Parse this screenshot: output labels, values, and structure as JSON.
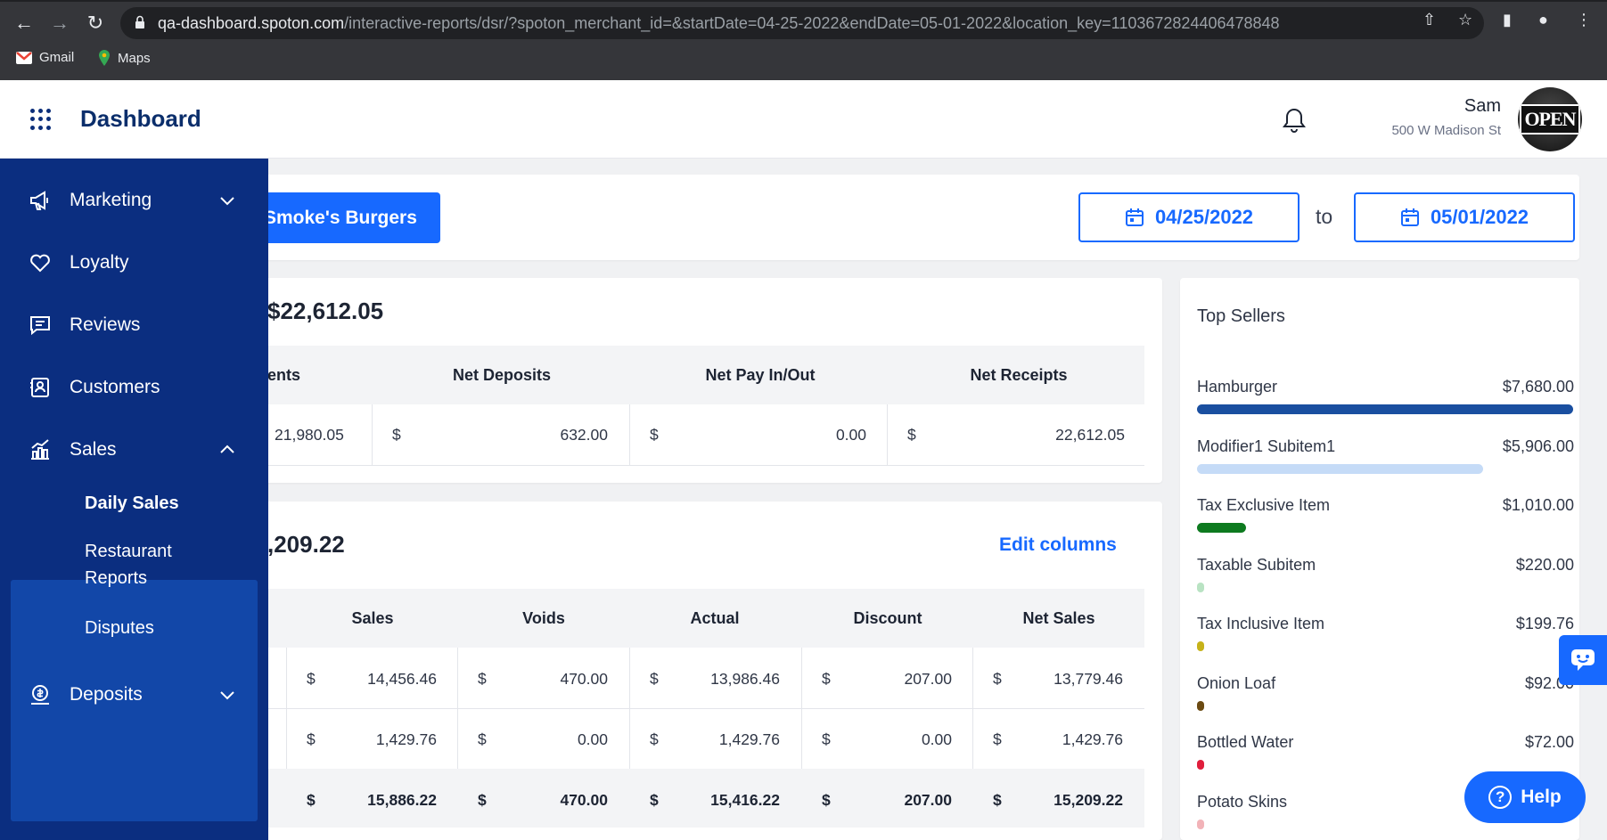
{
  "browser": {
    "url_host": "qa-dashboard.spoton.com",
    "url_path": "/interactive-reports/dsr/?spoton_merchant_id=&startDate=04-25-2022&endDate=05-01-2022&location_key=1103672824406478848",
    "bookmarks": [
      {
        "label": "Gmail",
        "icon": "gmail-icon"
      },
      {
        "label": "Maps",
        "icon": "maps-icon"
      }
    ]
  },
  "header": {
    "title": "Dashboard",
    "user_name": "Sam",
    "user_address": "500 W Madison St",
    "avatar_text": "OPEN"
  },
  "sidebar": {
    "items": [
      {
        "label": "Marketing",
        "icon": "megaphone-icon"
      },
      {
        "label": "Loyalty",
        "icon": "heart-icon"
      },
      {
        "label": "Reviews",
        "icon": "chat-bubble-icon"
      },
      {
        "label": "Customers",
        "icon": "contact-card-icon"
      },
      {
        "label": "Sales",
        "icon": "chart-icon"
      },
      {
        "label": "Deposits",
        "icon": "money-icon"
      }
    ],
    "sales_sub": [
      "Daily Sales",
      "Restaurant Reports",
      "Disputes"
    ]
  },
  "filters": {
    "location": "Smoke's Burgers",
    "start_date": "04/25/2022",
    "to_label": "to",
    "end_date": "05/01/2022"
  },
  "deposits_card": {
    "total": "$22,612.05",
    "headers": [
      "ents",
      "Net Deposits",
      "Net Pay In/Out",
      "Net Receipts"
    ],
    "row": {
      "first": "21,980.05",
      "cur2": "$",
      "net_deposits": "632.00",
      "cur3": "$",
      "net_pay": "0.00",
      "cur4": "$",
      "net_receipts": "22,612.05"
    }
  },
  "sales_card": {
    "total": ",209.22",
    "edit_columns": "Edit columns",
    "headers": [
      "Sales",
      "Voids",
      "Actual",
      "Discount",
      "Net Sales"
    ],
    "currency": "$",
    "rows": [
      [
        "14,456.46",
        "470.00",
        "13,986.46",
        "207.00",
        "13,779.46"
      ],
      [
        "1,429.76",
        "0.00",
        "1,429.76",
        "0.00",
        "1,429.76"
      ]
    ],
    "totals": [
      "15,886.22",
      "470.00",
      "15,416.22",
      "207.00",
      "15,209.22"
    ]
  },
  "top_sellers": {
    "title": "Top Sellers",
    "items": [
      {
        "name": "Hamburger",
        "amount": "$7,680.00",
        "fraction": 1.0,
        "color": "#1a4fa0"
      },
      {
        "name": "Modifier1 Subitem1",
        "amount": "$5,906.00",
        "fraction": 0.76,
        "color": "#c5dbf7"
      },
      {
        "name": "Tax Exclusive Item",
        "amount": "$1,010.00",
        "fraction": 0.13,
        "color": "#0d7a1f"
      },
      {
        "name": "Taxable Subitem",
        "amount": "$220.00",
        "fraction": 0.02,
        "color": "#b9e3c3"
      },
      {
        "name": "Tax Inclusive Item",
        "amount": "$199.76",
        "fraction": 0.02,
        "color": "#c6b21a"
      },
      {
        "name": "Onion Loaf",
        "amount": "$92.00",
        "fraction": 0.01,
        "color": "#6b4a12"
      },
      {
        "name": "Bottled Water",
        "amount": "$72.00",
        "fraction": 0.01,
        "color": "#e01e3c"
      },
      {
        "name": "Potato Skins",
        "amount": "",
        "fraction": 0.01,
        "color": "#f2b3b8"
      }
    ]
  },
  "help": {
    "label": "Help"
  }
}
